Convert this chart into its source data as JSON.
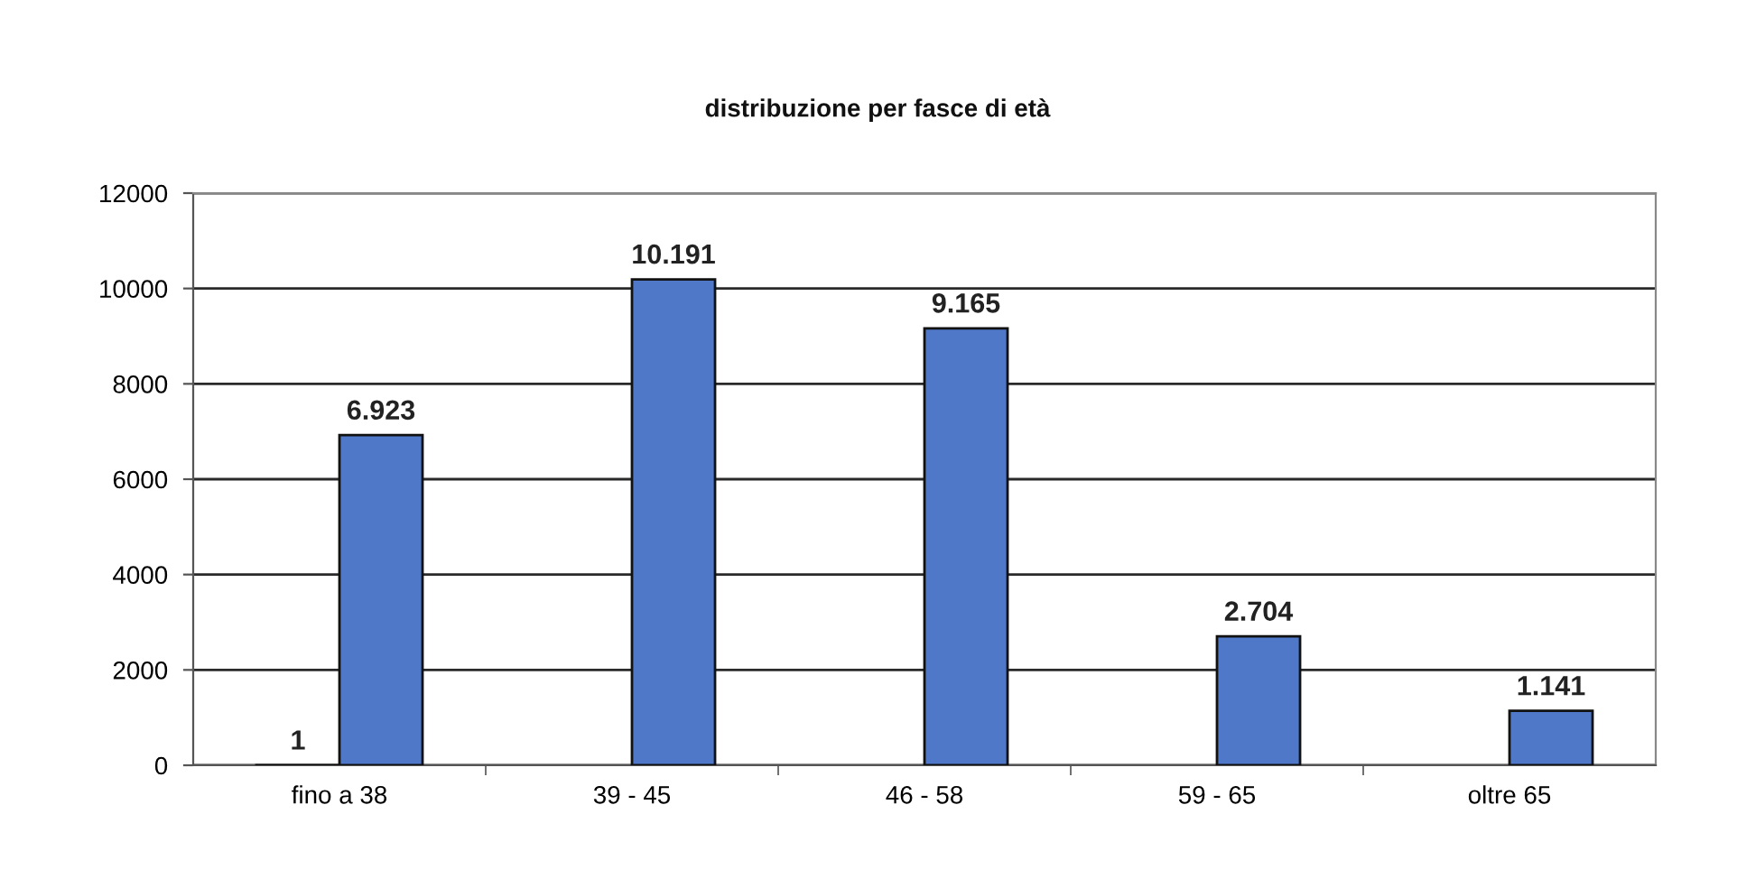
{
  "chart_data": {
    "type": "bar",
    "title": "distribuzione per fasce di età",
    "categories": [
      "fino a 38",
      "39 - 45",
      "46 - 58",
      "59 - 65",
      "oltre 65"
    ],
    "series": [
      {
        "color": "#4f78c8",
        "values": [
          1,
          null,
          null,
          null,
          null
        ],
        "value_labels": [
          "1",
          null,
          null,
          null,
          null
        ]
      },
      {
        "color": "#4f78c8",
        "values": [
          6923,
          10191,
          9165,
          2704,
          1141
        ],
        "value_labels": [
          "6.923",
          "10.191",
          "9.165",
          "2.704",
          "1.141"
        ]
      }
    ],
    "ylim": [
      0,
      12000
    ],
    "yticks": [
      0,
      2000,
      4000,
      6000,
      8000,
      10000,
      12000
    ],
    "grid": "y"
  }
}
